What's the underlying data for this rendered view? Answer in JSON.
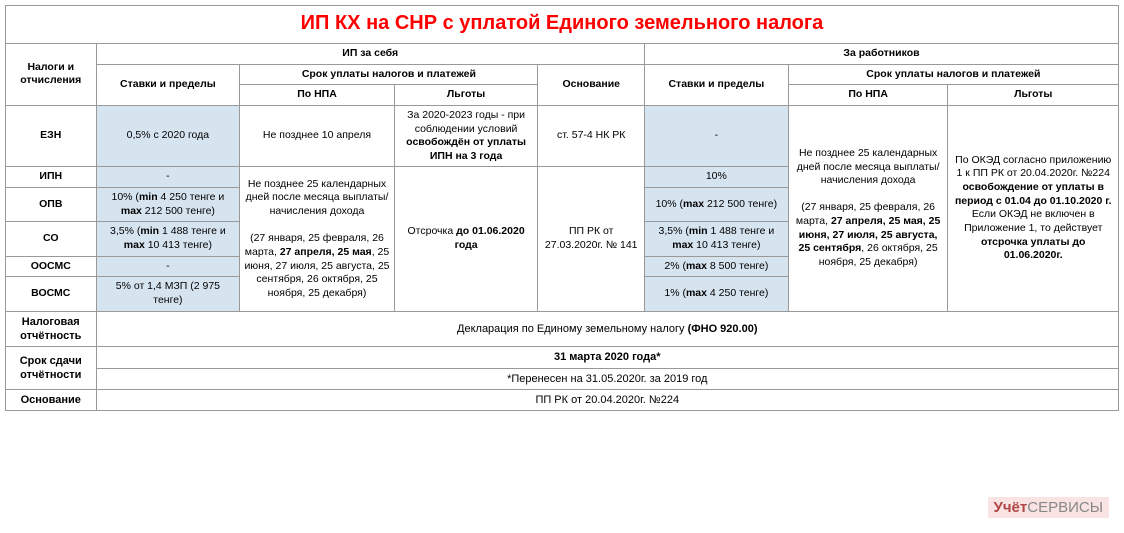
{
  "title": "ИП КХ на СНР с уплатой Единого земельного налога",
  "colors": {
    "title": "#ff0000",
    "rates_bg": "#d6e4f0",
    "border": "#999999"
  },
  "header": {
    "taxes": "Налоги и отчисления",
    "self": "ИП за себя",
    "employees": "За работников",
    "rates": "Ставки и пределы",
    "terms": "Срок уплаты налогов и платежей",
    "basis": "Основание",
    "by_npa": "По НПА",
    "lgoty": "Льготы"
  },
  "rows": {
    "ezn": {
      "label": "ЕЗН",
      "rate_self": "0,5% с 2020 года",
      "npa_self": "Не позднее 10 апреля",
      "lgoty_self_pre": "За 2020-2023 годы - при соблюдении условий ",
      "lgoty_self_bold": "освобождён от уплаты ИПН на 3 года",
      "basis_self": "ст. 57-4 НК РК",
      "rate_emp": "-"
    },
    "ipn": {
      "label": "ИПН",
      "rate_self": "-",
      "rate_emp": "10%"
    },
    "opv": {
      "label": "ОПВ",
      "rate_self_pre": "10% (",
      "rate_self_bold": "min",
      "rate_self_mid": " 4 250 тенге и ",
      "rate_self_bold2": "max",
      "rate_self_post": " 212 500 тенге)",
      "rate_emp_pre": "10% (",
      "rate_emp_bold": "max",
      "rate_emp_post": " 212 500 тенге)"
    },
    "so": {
      "label": "СО",
      "rate_self_pre": "3,5% (",
      "rate_self_bold": "min",
      "rate_self_mid": " 1 488 тенге и ",
      "rate_self_bold2": "max",
      "rate_self_post": " 10 413 тенге)",
      "rate_emp_pre": "3,5% (",
      "rate_emp_bold": "min",
      "rate_emp_mid": " 1 488 тенге и ",
      "rate_emp_bold2": "max",
      "rate_emp_post": " 10 413 тенге)"
    },
    "oosms": {
      "label": "ООСМС",
      "rate_self": "-",
      "rate_emp_pre": "2%  (",
      "rate_emp_bold": "max",
      "rate_emp_post": " 8 500  тенге)"
    },
    "vosms": {
      "label": "ВОСМС",
      "rate_self": "5% от 1,4 МЗП (2 975 тенге)",
      "rate_emp_pre": "1%  (",
      "rate_emp_bold": "max",
      "rate_emp_post": " 4 250 тенге)"
    }
  },
  "merged": {
    "npa_self_block_pre": "Не позднее 25 календарных дней после месяца выплаты/начисления дохода",
    "npa_self_block_dates_pre": "(27 января, 25 февраля, 26 марта, ",
    "npa_self_block_dates_bold": "27 апреля, 25 мая",
    "npa_self_block_dates_post": ", 25 июня, 27 июля, 25 августа, 25 сентября, 26 октября, 25 ноября, 25 декабря)",
    "lgoty_self_block_pre": "Отсрочка ",
    "lgoty_self_block_bold": "до 01.06.2020 года",
    "basis_self_block": "ПП РК от 27.03.2020г. № 141",
    "npa_emp_block_pre": "Не позднее 25 календарных дней после месяца выплаты/начисления дохода",
    "npa_emp_block_dates_pre": "(27 января, 25 февраля, 26 марта, ",
    "npa_emp_block_dates_bold": "27 апреля, 25 мая, 25 июня, 27 июля, 25 августа, 25 сентября",
    "npa_emp_block_dates_post": ", 26 октября, 25 ноября, 25 декабря)",
    "lgoty_emp_block_pre": "По ОКЭД согласно приложению 1 к ПП РК от 20.04.2020г. №224 ",
    "lgoty_emp_block_bold": "освобождение от уплаты в период с 01.04 до 01.10.2020 г.",
    "lgoty_emp_block_mid": " Если ОКЭД не включен в Приложение 1, то действует ",
    "lgoty_emp_block_bold2": "отсрочка уплаты до 01.06.2020г."
  },
  "footer": {
    "report_label": "Налоговая отчётность",
    "report_value_pre": "Декларация по Единому земельному налогу ",
    "report_value_bold": "(ФНО 920.00)",
    "deadline_label": "Срок сдачи отчётности",
    "deadline_value": "31 марта 2020 года*",
    "deadline_note": "*Перенесен на 31.05.2020г. за 2019 год",
    "basis_label": "Основание",
    "basis_value": "ПП РК от 20.04.2020г. №224"
  },
  "watermark": {
    "part1": "Учёт",
    "part2": "СЕРВИСЫ"
  }
}
